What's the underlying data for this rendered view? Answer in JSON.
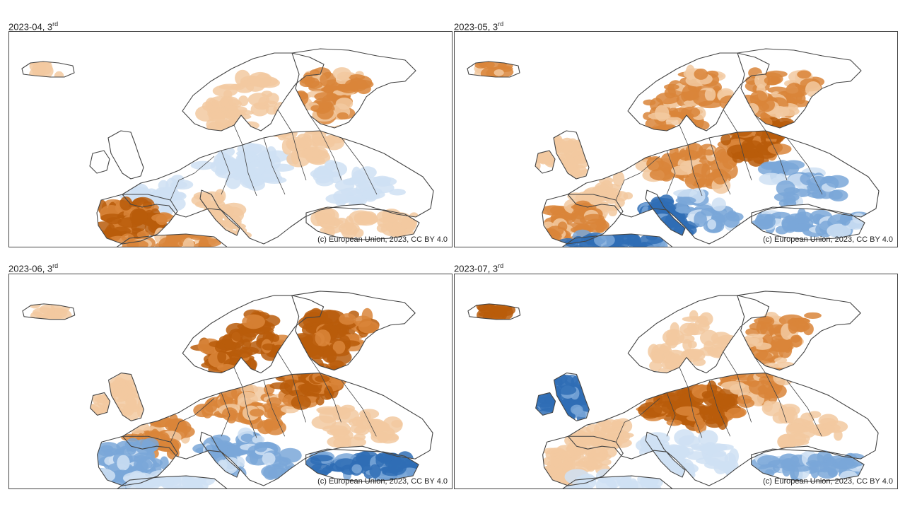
{
  "palette": {
    "dry_strong": "#b85c0a",
    "dry_mid": "#d9853a",
    "dry_light": "#f2c9a0",
    "wet_light": "#cfe0f3",
    "wet_mid": "#7aa7d8",
    "wet_strong": "#2f6db5",
    "land_outline": "#444444"
  },
  "panels": [
    {
      "id": "p1",
      "title_main": "2023-04, 3",
      "title_sup": "rd",
      "credit": "(c) European Union, 2023, CC BY 4.0"
    },
    {
      "id": "p2",
      "title_main": "2023-05, 3",
      "title_sup": "rd",
      "credit": "(c) European Union, 2023, CC BY 4.0"
    },
    {
      "id": "p3",
      "title_main": "2023-06, 3",
      "title_sup": "rd",
      "credit": "(c) European Union, 2023, CC BY 4.0"
    },
    {
      "id": "p4",
      "title_main": "2023-07, 3",
      "title_sup": "rd",
      "credit": "(c) European Union, 2023, CC BY 4.0"
    }
  ]
}
